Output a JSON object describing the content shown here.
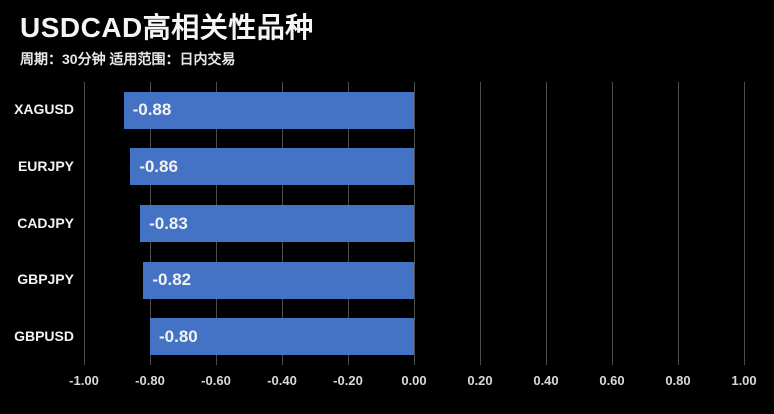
{
  "header": {
    "title": "USDCAD高相关性品种",
    "subtitle": "周期：30分钟 适用范围：日内交易"
  },
  "chart_data": {
    "type": "bar",
    "orientation": "horizontal",
    "title": "USDCAD高相关性品种",
    "subtitle": "周期：30分钟 适用范围：日内交易",
    "categories": [
      "XAGUSD",
      "EURJPY",
      "CADJPY",
      "GBPJPY",
      "GBPUSD"
    ],
    "values": [
      -0.88,
      -0.86,
      -0.83,
      -0.82,
      -0.8
    ],
    "value_labels": [
      "-0.88",
      "-0.86",
      "-0.83",
      "-0.82",
      "-0.80"
    ],
    "xlabel": "",
    "ylabel": "",
    "xlim": [
      -1.0,
      1.0
    ],
    "xticks": [
      -1.0,
      -0.8,
      -0.6,
      -0.4,
      -0.2,
      0.0,
      0.2,
      0.4,
      0.6,
      0.8,
      1.0
    ],
    "xtick_labels": [
      "-1.00",
      "-0.80",
      "-0.60",
      "-0.40",
      "-0.20",
      "0.00",
      "0.20",
      "0.40",
      "0.60",
      "0.80",
      "1.00"
    ],
    "grid": true,
    "legend": false,
    "colors": {
      "background": "#000000",
      "bar": "#4472C4",
      "gridline": "#4d4d4d",
      "title_text": "#f5f5f5",
      "label_text": "#f2f2f2",
      "axis_text": "#d9d9d9"
    }
  }
}
